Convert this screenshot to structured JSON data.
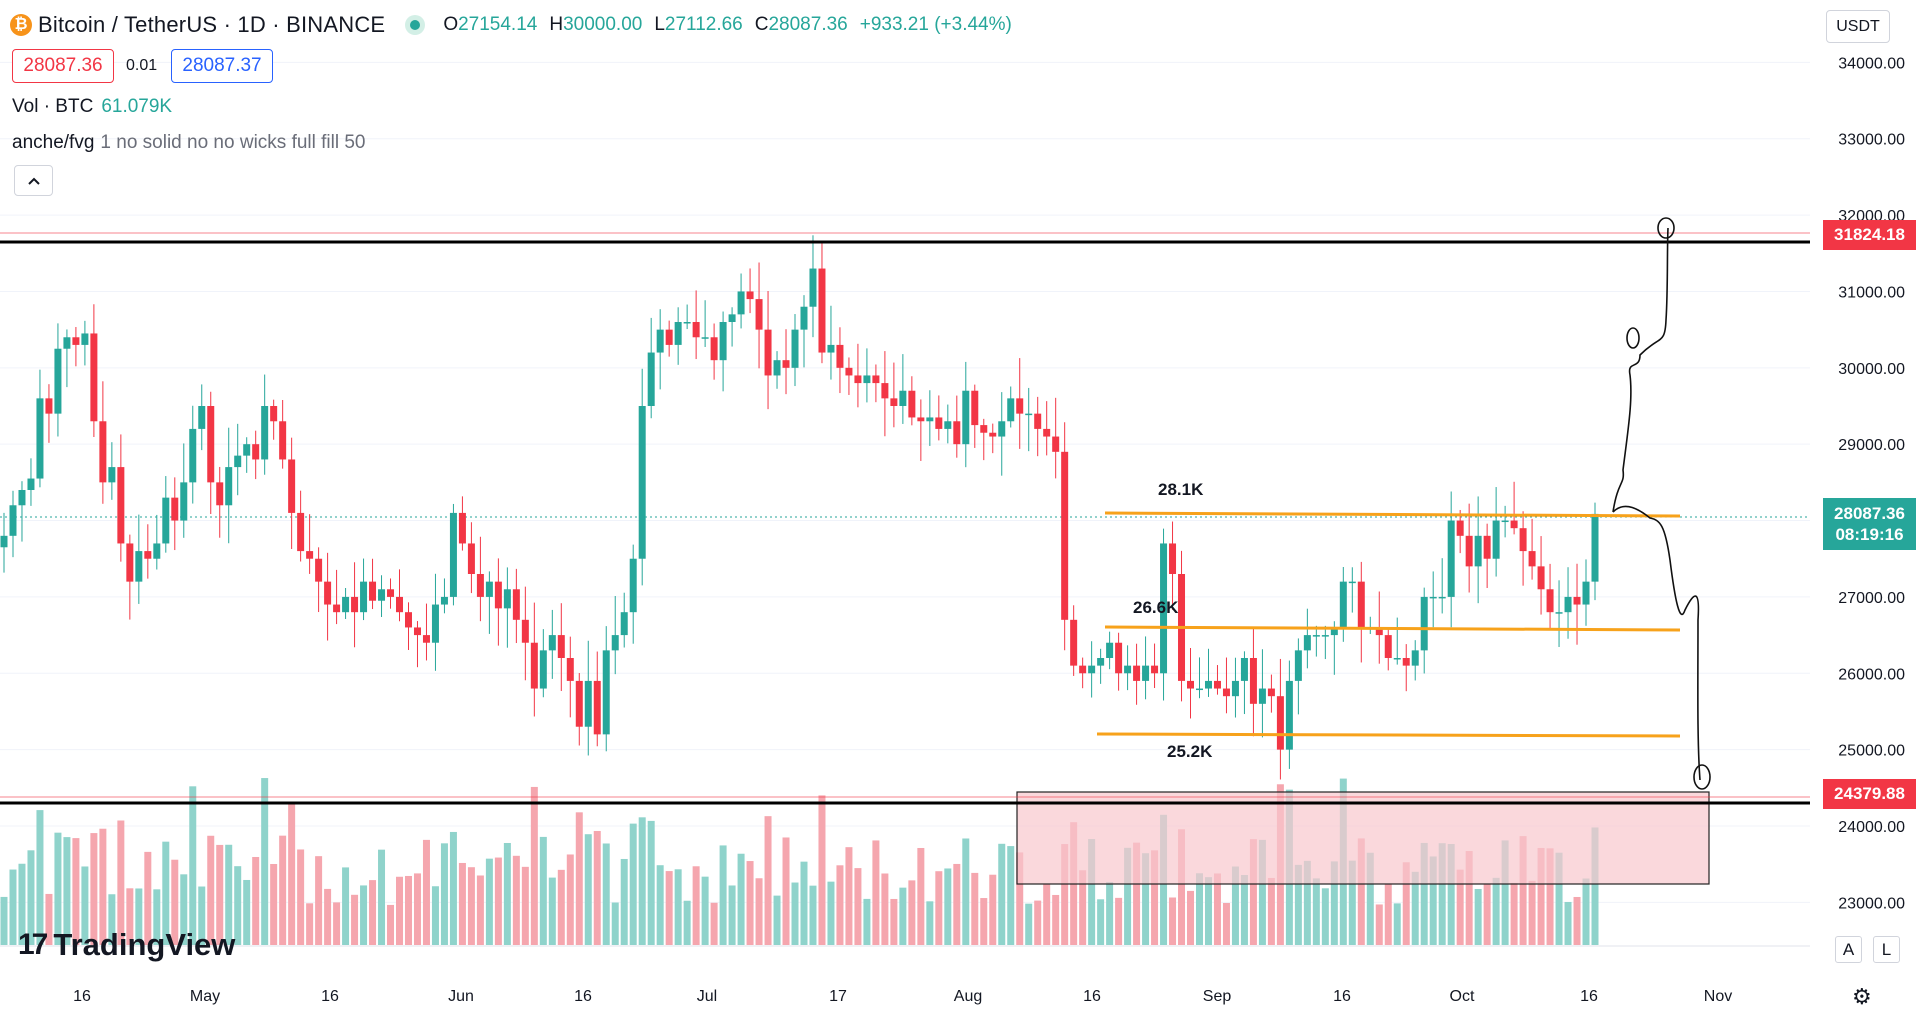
{
  "header": {
    "coin_glyph": "₿",
    "symbol": "Bitcoin / TetherUS · 1D · BINANCE",
    "ohlc": [
      {
        "k": "O",
        "v": "27154.14"
      },
      {
        "k": "H",
        "v": "30000.00"
      },
      {
        "k": "L",
        "v": "27112.66"
      },
      {
        "k": "C",
        "v": "28087.36"
      }
    ],
    "change": "+933.21 (+3.44%)"
  },
  "trade": {
    "sell": "28087.36",
    "spread": "0.01",
    "buy": "28087.37"
  },
  "legend": {
    "volume_label": "Vol · BTC",
    "volume_value": "61.079K",
    "indicator_name": "anche/fvg",
    "indicator_params": "1 no solid no no wicks full fill 50",
    "collapse_icon": "chevron-up-icon"
  },
  "price_scale": {
    "currency": "USDT",
    "ticks": [
      "34000.00",
      "33000.00",
      "32000.00",
      "31000.00",
      "30000.00",
      "29000.00",
      "28000.00",
      "27000.00",
      "26000.00",
      "25000.00",
      "24000.00",
      "23000.00"
    ],
    "label_top": "31824.18",
    "label_current": "28087.36",
    "label_countdown": "08:19:16",
    "label_bottom": "24379.88",
    "auto_button": "A",
    "log_button": "L"
  },
  "time_axis": [
    "16",
    "May",
    "16",
    "Jun",
    "16",
    "Jul",
    "17",
    "Aug",
    "16",
    "Sep",
    "16",
    "Oct",
    "16",
    "Nov"
  ],
  "logo": {
    "mark": "17",
    "text": "TradingView"
  },
  "annotations": {
    "level_high": "28.1K",
    "level_mid": "26.6K",
    "level_low": "25.2K"
  },
  "colors": {
    "up": "#26a69a",
    "down": "#f23645",
    "level": "#f7a21b",
    "zone": "#f8c7cd"
  },
  "chart_data": {
    "type": "candlestick",
    "title": "Bitcoin / TetherUS · 1D · BINANCE",
    "ylim": [
      22400,
      34850
    ],
    "horizontal_levels": [
      31824.18,
      24379.88
    ],
    "annotated_levels": [
      28100,
      26600,
      25200
    ],
    "close": [
      27800,
      28200,
      28400,
      28550,
      29600,
      29400,
      30250,
      30400,
      30300,
      30450,
      29300,
      28500,
      28700,
      27700,
      27200,
      27600,
      27500,
      27700,
      28300,
      28000,
      28500,
      29200,
      29500,
      28500,
      28200,
      28700,
      28850,
      29000,
      28800,
      29500,
      29300,
      28800,
      28100,
      27600,
      27500,
      27200,
      26900,
      26800,
      27000,
      26800,
      27200,
      26950,
      27100,
      27000,
      26800,
      26600,
      26500,
      26400,
      26900,
      27000,
      28100,
      27700,
      27300,
      27000,
      27200,
      26850,
      27100,
      26700,
      26400,
      25800,
      26300,
      26500,
      26200,
      25900,
      25300,
      25900,
      25200,
      26300,
      26500,
      26800,
      27500,
      29500,
      30200,
      30500,
      30300,
      30600,
      30600,
      30400,
      30400,
      30100,
      30600,
      30700,
      31000,
      30900,
      30500,
      29900,
      30100,
      30000,
      30500,
      30800,
      31300,
      30200,
      30300,
      30000,
      29900,
      29800,
      29900,
      29800,
      29600,
      29500,
      29700,
      29350,
      29300,
      29350,
      29200,
      29300,
      29000,
      29700,
      29250,
      29150,
      29100,
      29300,
      29600,
      29400,
      29400,
      29200,
      29100,
      28900,
      26700,
      26100,
      26000,
      26100,
      26200,
      26400,
      26000,
      26100,
      25900,
      26100,
      26000,
      27700,
      27300,
      25900,
      25800,
      25800,
      25900,
      25800,
      25700,
      25900,
      26200,
      25600,
      25800,
      25700,
      25000,
      25900,
      26300,
      26500,
      26500,
      26500,
      26600,
      27200,
      27200,
      26600,
      26600,
      26500,
      26200,
      26200,
      26100,
      26300,
      27000,
      27000,
      27000,
      28000,
      27800,
      27400,
      27800,
      27500,
      28000,
      28000,
      27900,
      27600,
      27400,
      27100,
      26800,
      26800,
      27000,
      26900,
      27200,
      28087
    ],
    "x_ticks": [
      "16",
      "May",
      "16",
      "Jun",
      "16",
      "Jul",
      "17",
      "Aug",
      "16",
      "Sep",
      "16",
      "Oct",
      "16",
      "Nov"
    ]
  }
}
